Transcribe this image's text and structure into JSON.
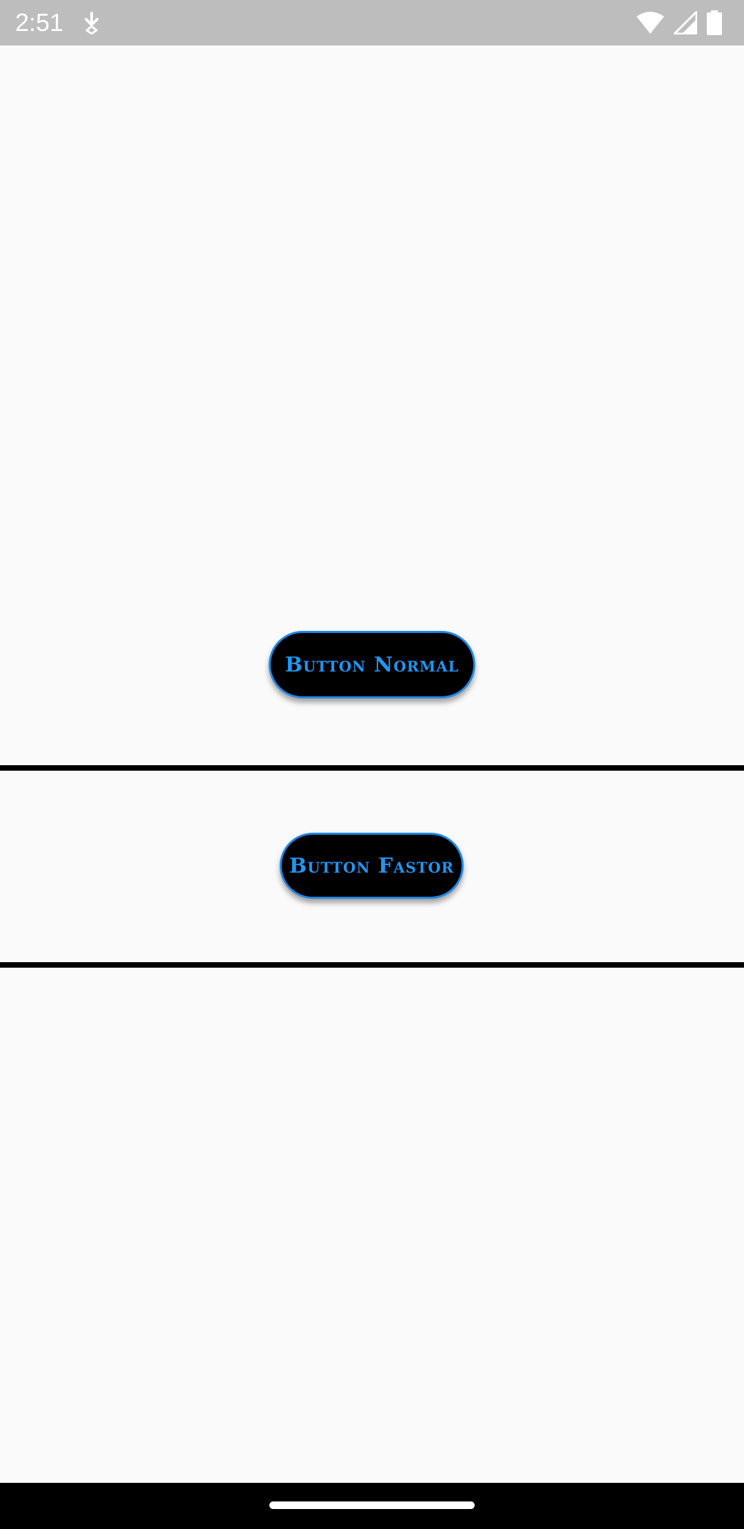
{
  "status_bar": {
    "time": "2:51",
    "icons": [
      "download-icon",
      "wifi-icon",
      "cellular-signal-icon",
      "battery-icon"
    ]
  },
  "buttons": {
    "normal_label": "Button Normal",
    "faster_label": "Button Fastor"
  },
  "colors": {
    "status_bar": "#bdbdbd",
    "background": "#fafafa",
    "button_fill": "#000000",
    "button_text": "#2196f3",
    "button_border": "#1e88e5",
    "divider": "#000000",
    "nav_bar": "#000000"
  }
}
